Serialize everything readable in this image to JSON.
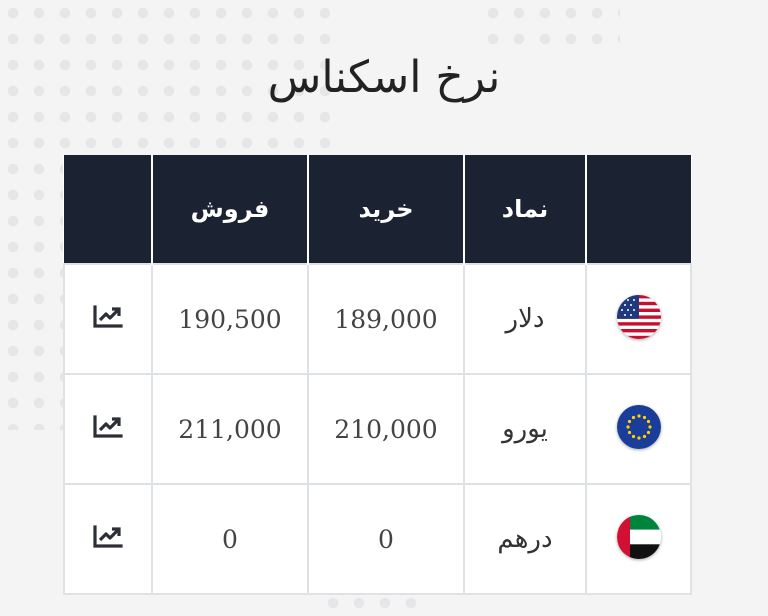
{
  "page": {
    "title": "نرخ اسکناس"
  },
  "table": {
    "headers": {
      "icon": "",
      "sell": "فروش",
      "buy": "خرید",
      "symbol": "نماد",
      "flag": ""
    },
    "rows": [
      {
        "symbol": "دلار",
        "buy": "189,000",
        "sell": "190,500",
        "flag": "us-flag",
        "icon": "trend-chart-icon"
      },
      {
        "symbol": "یورو",
        "buy": "210,000",
        "sell": "211,000",
        "flag": "eu-flag",
        "icon": "trend-chart-icon"
      },
      {
        "symbol": "درهم",
        "buy": "0",
        "sell": "0",
        "flag": "uae-flag",
        "icon": "trend-chart-icon"
      }
    ]
  },
  "colors": {
    "header_bg": "#1b2231",
    "header_text": "#ffffff",
    "border": "#dfe2e5",
    "background": "#f4f4f5"
  }
}
